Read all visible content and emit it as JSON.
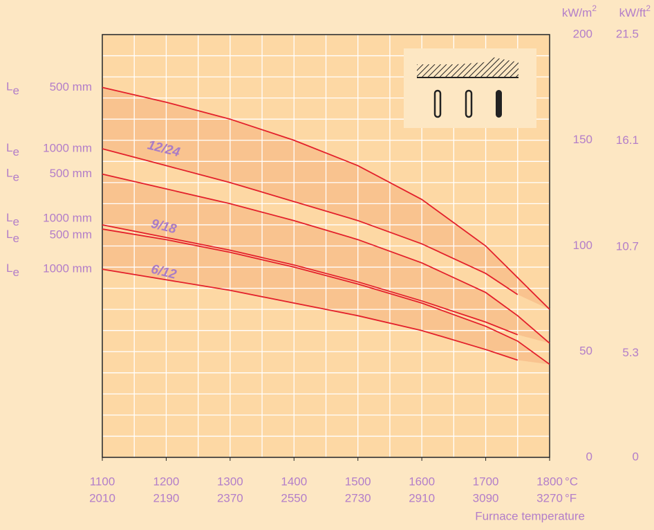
{
  "chart_data": {
    "type": "line",
    "x": [
      1100,
      1200,
      1300,
      1400,
      1500,
      1600,
      1700,
      1750,
      1800
    ],
    "xlim": [
      1100,
      1800
    ],
    "xticks": [
      1100,
      1200,
      1300,
      1400,
      1500,
      1600,
      1700,
      1800
    ],
    "x_unit": "°C",
    "x2ticks": [
      2010,
      2190,
      2370,
      2550,
      2730,
      2910,
      3090,
      3270
    ],
    "x2_unit": "°F",
    "xlabel": "Furnace temperature",
    "ylim": [
      0,
      200
    ],
    "yticks": [
      0,
      50,
      100,
      150,
      200
    ],
    "y_unit": {
      "base": "kW/m",
      "sup": "2"
    },
    "y2lim": [
      0,
      21.5
    ],
    "y2ticks": [
      0,
      5.3,
      10.7,
      16.1,
      21.5
    ],
    "y2_unit": {
      "base": "kW/ft",
      "sup": "2"
    },
    "grid": true,
    "x_minor_grid": 50,
    "y_minor_grid": 10,
    "line_color": "#e3202b",
    "band_color": "#f8c08c",
    "plot_color": "#fdd8a4",
    "length_symbol": {
      "base": "L",
      "sub": "e"
    },
    "groups": [
      {
        "label": "12/24",
        "series": [
          {
            "name": "500 mm",
            "values": [
              175,
              168,
              160,
              150,
              138,
              122,
              100,
              85,
              70
            ]
          },
          {
            "name": "1000 mm",
            "values": [
              146,
              138,
              130,
              121,
              112,
              101,
              87,
              77,
              null
            ]
          }
        ]
      },
      {
        "label": "9/18",
        "series": [
          {
            "name": "500 mm",
            "values": [
              134,
              127,
              120,
              112,
              103,
              92,
              78,
              67,
              54
            ]
          },
          {
            "name": "1000 mm",
            "values": [
              110,
              104,
              98,
              91,
              83,
              74,
              64,
              58,
              null
            ]
          }
        ]
      },
      {
        "label": "6/12",
        "series": [
          {
            "name": "500 mm",
            "values": [
              108,
              103,
              97,
              90,
              82,
              73,
              62,
              55,
              44
            ]
          },
          {
            "name": "1000 mm",
            "values": [
              89,
              84,
              79,
              73,
              67,
              60,
              51,
              46,
              null
            ]
          }
        ]
      }
    ]
  }
}
